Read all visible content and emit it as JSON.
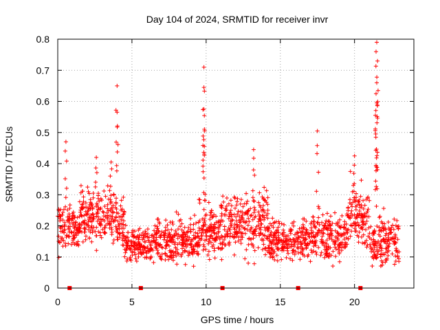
{
  "chart_data": {
    "type": "scatter",
    "title": "Day 104 of 2024, SRMTID for receiver invr",
    "xlabel": "GPS time / hours",
    "ylabel": "SRMTID / TECUs",
    "xlim": [
      0,
      24
    ],
    "ylim": [
      0,
      0.8
    ],
    "x_ticks": [
      0,
      5,
      10,
      15,
      20
    ],
    "x_tick_labels": [
      "0",
      "5",
      "10",
      "15",
      "20"
    ],
    "y_ticks": [
      0,
      0.1,
      0.2,
      0.3,
      0.4,
      0.5,
      0.6,
      0.7,
      0.8
    ],
    "y_tick_labels": [
      "0",
      "0.1",
      "0.2",
      "0.3",
      "0.4",
      "0.5",
      "0.6",
      "0.7",
      "0.8"
    ],
    "grid": true,
    "marker": "+",
    "series_color": "#ff0000",
    "baseline_markers_x": [
      0.8,
      5.6,
      11.1,
      16.2,
      20.4
    ],
    "baseline_marker_color": "#ff0000",
    "data_x_range": [
      0,
      23
    ],
    "notable_peaks": [
      {
        "x": 4.0,
        "y": 0.65
      },
      {
        "x": 4.0,
        "y": 0.565
      },
      {
        "x": 9.85,
        "y": 0.71
      },
      {
        "x": 9.85,
        "y": 0.645
      },
      {
        "x": 9.85,
        "y": 0.575
      },
      {
        "x": 9.9,
        "y": 0.505
      },
      {
        "x": 13.2,
        "y": 0.445
      },
      {
        "x": 17.5,
        "y": 0.505
      },
      {
        "x": 21.5,
        "y": 0.79
      },
      {
        "x": 21.45,
        "y": 0.76
      },
      {
        "x": 21.55,
        "y": 0.73
      },
      {
        "x": 21.5,
        "y": 0.66
      },
      {
        "x": 21.45,
        "y": 0.625
      },
      {
        "x": 21.5,
        "y": 0.595
      },
      {
        "x": 0.55,
        "y": 0.47
      },
      {
        "x": 2.6,
        "y": 0.42
      },
      {
        "x": 3.6,
        "y": 0.405
      },
      {
        "x": 20.0,
        "y": 0.425
      }
    ],
    "envelope": [
      {
        "x_from": 0,
        "x_to": 1.5,
        "y_low": 0.09,
        "y_high": 0.3
      },
      {
        "x_from": 1.5,
        "x_to": 3.5,
        "y_low": 0.1,
        "y_high": 0.36
      },
      {
        "x_from": 3.5,
        "x_to": 4.5,
        "y_low": 0.09,
        "y_high": 0.33
      },
      {
        "x_from": 4.5,
        "x_to": 6.5,
        "y_low": 0.06,
        "y_high": 0.22
      },
      {
        "x_from": 6.5,
        "x_to": 9.5,
        "y_low": 0.05,
        "y_high": 0.26
      },
      {
        "x_from": 9.5,
        "x_to": 11,
        "y_low": 0.07,
        "y_high": 0.3
      },
      {
        "x_from": 11,
        "x_to": 14.2,
        "y_low": 0.07,
        "y_high": 0.34
      },
      {
        "x_from": 14.2,
        "x_to": 17,
        "y_low": 0.06,
        "y_high": 0.24
      },
      {
        "x_from": 17,
        "x_to": 19.5,
        "y_low": 0.05,
        "y_high": 0.29
      },
      {
        "x_from": 19.5,
        "x_to": 21,
        "y_low": 0.08,
        "y_high": 0.38
      },
      {
        "x_from": 21,
        "x_to": 23,
        "y_low": 0.04,
        "y_high": 0.26
      }
    ]
  }
}
